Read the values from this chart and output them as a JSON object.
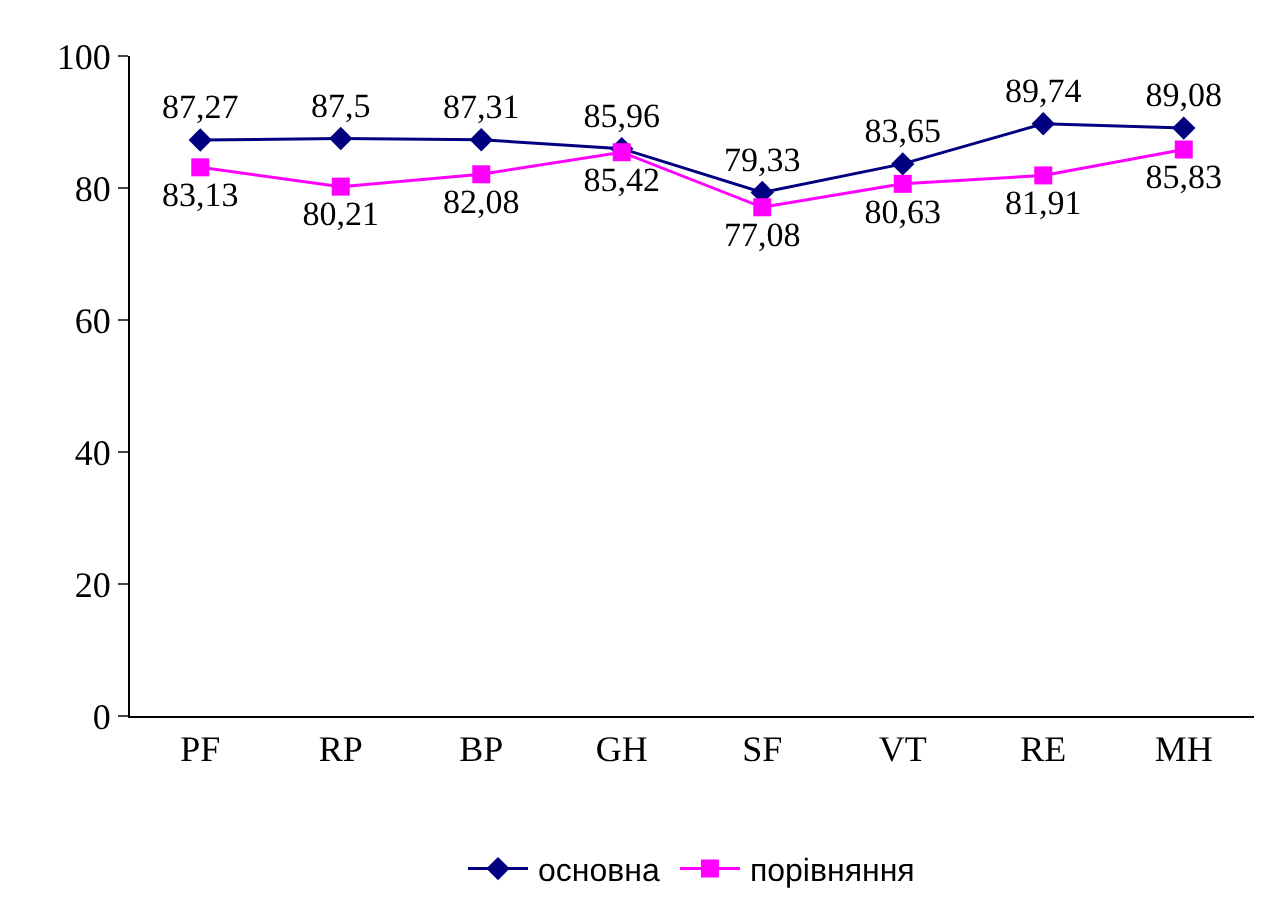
{
  "chart_data": {
    "type": "line",
    "categories": [
      "PF",
      "RP",
      "BP",
      "GH",
      "SF",
      "VT",
      "RE",
      "MH"
    ],
    "series": [
      {
        "name": "основна",
        "color": "#000080",
        "marker": "diamond",
        "values": [
          87.27,
          87.5,
          87.31,
          85.96,
          79.33,
          83.65,
          89.74,
          89.08
        ],
        "value_labels": [
          "87,27",
          "87,5",
          "87,31",
          "85,96",
          "79,33",
          "83,65",
          "89,74",
          "89,08"
        ]
      },
      {
        "name": "порівняння",
        "color": "#ff00ff",
        "marker": "square",
        "values": [
          83.13,
          80.21,
          82.08,
          85.42,
          77.08,
          80.63,
          81.91,
          85.83
        ],
        "value_labels": [
          "83,13",
          "80,21",
          "82,08",
          "85,42",
          "77,08",
          "80,63",
          "81,91",
          "85,83"
        ]
      }
    ],
    "ylim": [
      0,
      100
    ],
    "yticks": [
      0,
      20,
      40,
      60,
      80,
      100
    ],
    "grid": false,
    "legend": "bottom",
    "line_style": "solid"
  }
}
